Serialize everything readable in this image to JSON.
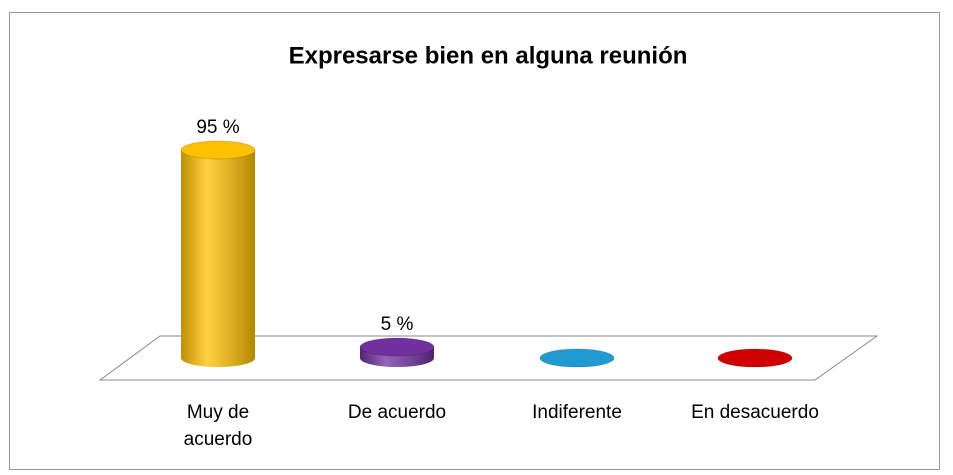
{
  "chart_data": {
    "type": "cylinder",
    "title": "Expresarse bien en alguna reunión",
    "categories": [
      "Muy de acuerdo",
      "De acuerdo",
      "Indiferente",
      "En desacuerdo"
    ],
    "values": [
      95,
      5,
      0,
      0
    ],
    "value_labels": [
      "95 %",
      "5 %",
      null,
      null
    ],
    "colors": [
      "#ffc000",
      "#7030a0",
      "#1f9bd1",
      "#d00000"
    ]
  }
}
